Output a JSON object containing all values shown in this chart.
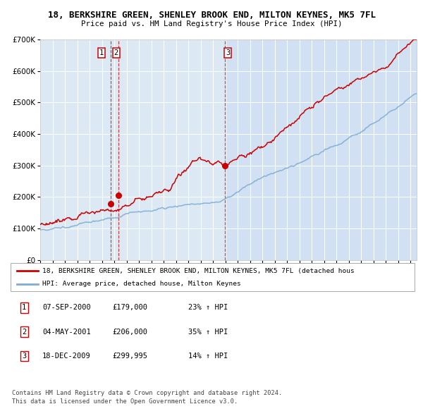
{
  "title1": "18, BERKSHIRE GREEN, SHENLEY BROOK END, MILTON KEYNES, MK5 7FL",
  "title2": "Price paid vs. HM Land Registry's House Price Index (HPI)",
  "ylim": [
    0,
    700000
  ],
  "yticks": [
    0,
    100000,
    200000,
    300000,
    400000,
    500000,
    600000,
    700000
  ],
  "ytick_labels": [
    "£0",
    "£100K",
    "£200K",
    "£300K",
    "£400K",
    "£500K",
    "£600K",
    "£700K"
  ],
  "plot_bg_color": "#dce9f5",
  "shade_color": "#c8daf0",
  "grid_color": "#ffffff",
  "red_line_color": "#cc0000",
  "blue_line_color": "#7dadd4",
  "sale_dates": [
    2000.69,
    2001.34,
    2009.96
  ],
  "sale_prices": [
    179000,
    206000,
    299995
  ],
  "legend_label_red": "18, BERKSHIRE GREEN, SHENLEY BROOK END, MILTON KEYNES, MK5 7FL (detached hous",
  "legend_label_blue": "HPI: Average price, detached house, Milton Keynes",
  "table_rows": [
    [
      "1",
      "07-SEP-2000",
      "£179,000",
      "23% ↑ HPI"
    ],
    [
      "2",
      "04-MAY-2001",
      "£206,000",
      "35% ↑ HPI"
    ],
    [
      "3",
      "18-DEC-2009",
      "£299,995",
      "14% ↑ HPI"
    ]
  ],
  "footer1": "Contains HM Land Registry data © Crown copyright and database right 2024.",
  "footer2": "This data is licensed under the Open Government Licence v3.0."
}
